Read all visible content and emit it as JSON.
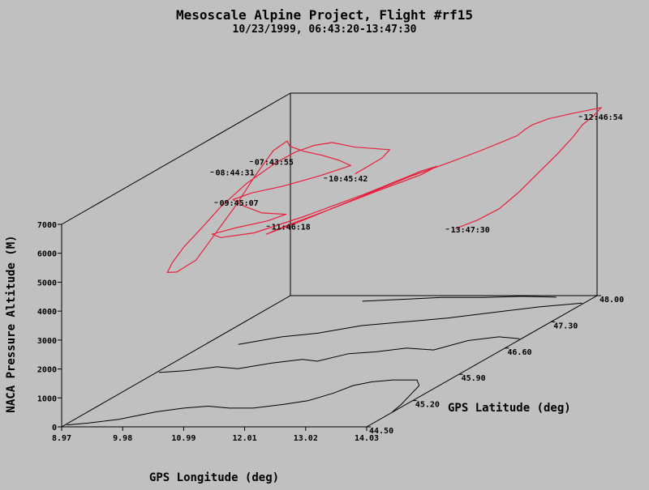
{
  "chart_data": {
    "type": "line",
    "projection": "3d-perspective",
    "title": "Mesoscale Alpine Project, Flight #rf15",
    "subtitle": "10/23/1999, 06:43:20-13:47:30",
    "xlabel": "GPS Longitude (deg)",
    "ylabel": "GPS Latitude (deg)",
    "zlabel": "NACA Pressure Altitude (M)",
    "xlim": [
      8.97,
      14.03
    ],
    "ylim": [
      44.5,
      48.0
    ],
    "zlim": [
      0,
      7000
    ],
    "x_ticks": [
      "8.97",
      "9.98",
      "10.99",
      "12.01",
      "13.02",
      "14.03"
    ],
    "y_ticks": [
      "44.50",
      "45.20",
      "45.90",
      "46.60",
      "47.30",
      "48.00"
    ],
    "z_ticks": [
      "0",
      "1000",
      "2000",
      "3000",
      "4000",
      "5000",
      "6000",
      "7000"
    ],
    "colors": {
      "track": "#e8203c",
      "map": "#000000",
      "axes": "#000000",
      "background": "#c0c0c0"
    },
    "time_labels": [
      {
        "text": "07:43:55"
      },
      {
        "text": "08:44:31"
      },
      {
        "text": "09:45:07"
      },
      {
        "text": "10:45:42"
      },
      {
        "text": "11:46:18"
      },
      {
        "text": "12:46:54"
      },
      {
        "text": "13:47:30"
      }
    ],
    "series": [
      {
        "points": [
          [
            12.2,
            46.0,
            6800
          ],
          [
            12.1,
            46.5,
            6700
          ],
          [
            11.9,
            46.8,
            6600
          ],
          [
            11.6,
            46.9,
            6500
          ],
          [
            11.3,
            47.0,
            6400
          ],
          [
            11.0,
            47.1,
            6300
          ],
          [
            10.7,
            47.2,
            6250
          ],
          [
            10.4,
            47.3,
            6200
          ],
          [
            10.1,
            47.3,
            6100
          ],
          [
            9.9,
            47.2,
            6000
          ],
          [
            9.8,
            47.0,
            5900
          ],
          [
            9.75,
            46.6,
            5700
          ],
          [
            9.75,
            46.2,
            5400
          ],
          [
            9.78,
            45.9,
            5100
          ],
          [
            9.8,
            45.6,
            4800
          ],
          [
            9.82,
            45.4,
            4500
          ],
          [
            9.85,
            45.3,
            4300
          ],
          [
            9.95,
            45.35,
            4250
          ],
          [
            10.05,
            45.55,
            4400
          ],
          [
            10.1,
            45.8,
            5000
          ],
          [
            10.12,
            46.1,
            5600
          ],
          [
            10.1,
            46.4,
            6200
          ],
          [
            10.08,
            46.7,
            6700
          ],
          [
            10.2,
            46.8,
            6900
          ],
          [
            10.35,
            46.7,
            6850
          ],
          [
            10.7,
            46.6,
            6800
          ],
          [
            11.1,
            46.5,
            6800
          ],
          [
            11.5,
            46.4,
            6750
          ],
          [
            11.8,
            46.3,
            6700
          ],
          [
            11.5,
            46.1,
            6600
          ],
          [
            11.1,
            45.9,
            6500
          ],
          [
            10.7,
            45.8,
            6400
          ],
          [
            10.5,
            45.7,
            6300
          ],
          [
            10.8,
            45.6,
            6200
          ],
          [
            11.2,
            45.5,
            6100
          ],
          [
            11.6,
            45.5,
            6050
          ],
          [
            11.4,
            45.4,
            5950
          ],
          [
            11.0,
            45.3,
            5850
          ],
          [
            10.7,
            45.2,
            5750
          ],
          [
            10.9,
            45.15,
            5700
          ],
          [
            11.4,
            45.2,
            5800
          ],
          [
            12.0,
            45.4,
            6100
          ],
          [
            12.7,
            45.7,
            6500
          ],
          [
            13.3,
            46.0,
            6900
          ],
          [
            13.5,
            46.05,
            7000
          ],
          [
            13.4,
            45.9,
            6900
          ],
          [
            12.9,
            45.7,
            6600
          ],
          [
            12.3,
            45.5,
            6200
          ],
          [
            11.8,
            45.3,
            5900
          ],
          [
            11.6,
            45.2,
            5750
          ],
          [
            12.0,
            45.35,
            6000
          ],
          [
            12.6,
            45.65,
            6400
          ],
          [
            13.2,
            45.95,
            6800
          ],
          [
            13.6,
            46.15,
            7000
          ],
          [
            13.9,
            46.35,
            7150
          ],
          [
            13.95,
            46.6,
            7100
          ],
          [
            13.9,
            46.9,
            6950
          ],
          [
            13.75,
            47.1,
            6800
          ],
          [
            13.6,
            47.3,
            6650
          ],
          [
            13.5,
            47.5,
            6550
          ],
          [
            13.55,
            47.7,
            6500
          ],
          [
            13.8,
            47.85,
            6500
          ],
          [
            14.0,
            47.95,
            6500
          ],
          [
            14.1,
            48.0,
            6500
          ],
          [
            14.05,
            47.92,
            6300
          ],
          [
            13.95,
            47.85,
            6100
          ],
          [
            13.9,
            47.75,
            5800
          ],
          [
            13.8,
            47.6,
            5400
          ],
          [
            13.7,
            47.4,
            5000
          ],
          [
            13.6,
            47.2,
            4600
          ],
          [
            13.5,
            47.0,
            4300
          ],
          [
            13.3,
            46.85,
            4100
          ],
          [
            13.1,
            46.7,
            4000
          ]
        ]
      }
    ]
  }
}
